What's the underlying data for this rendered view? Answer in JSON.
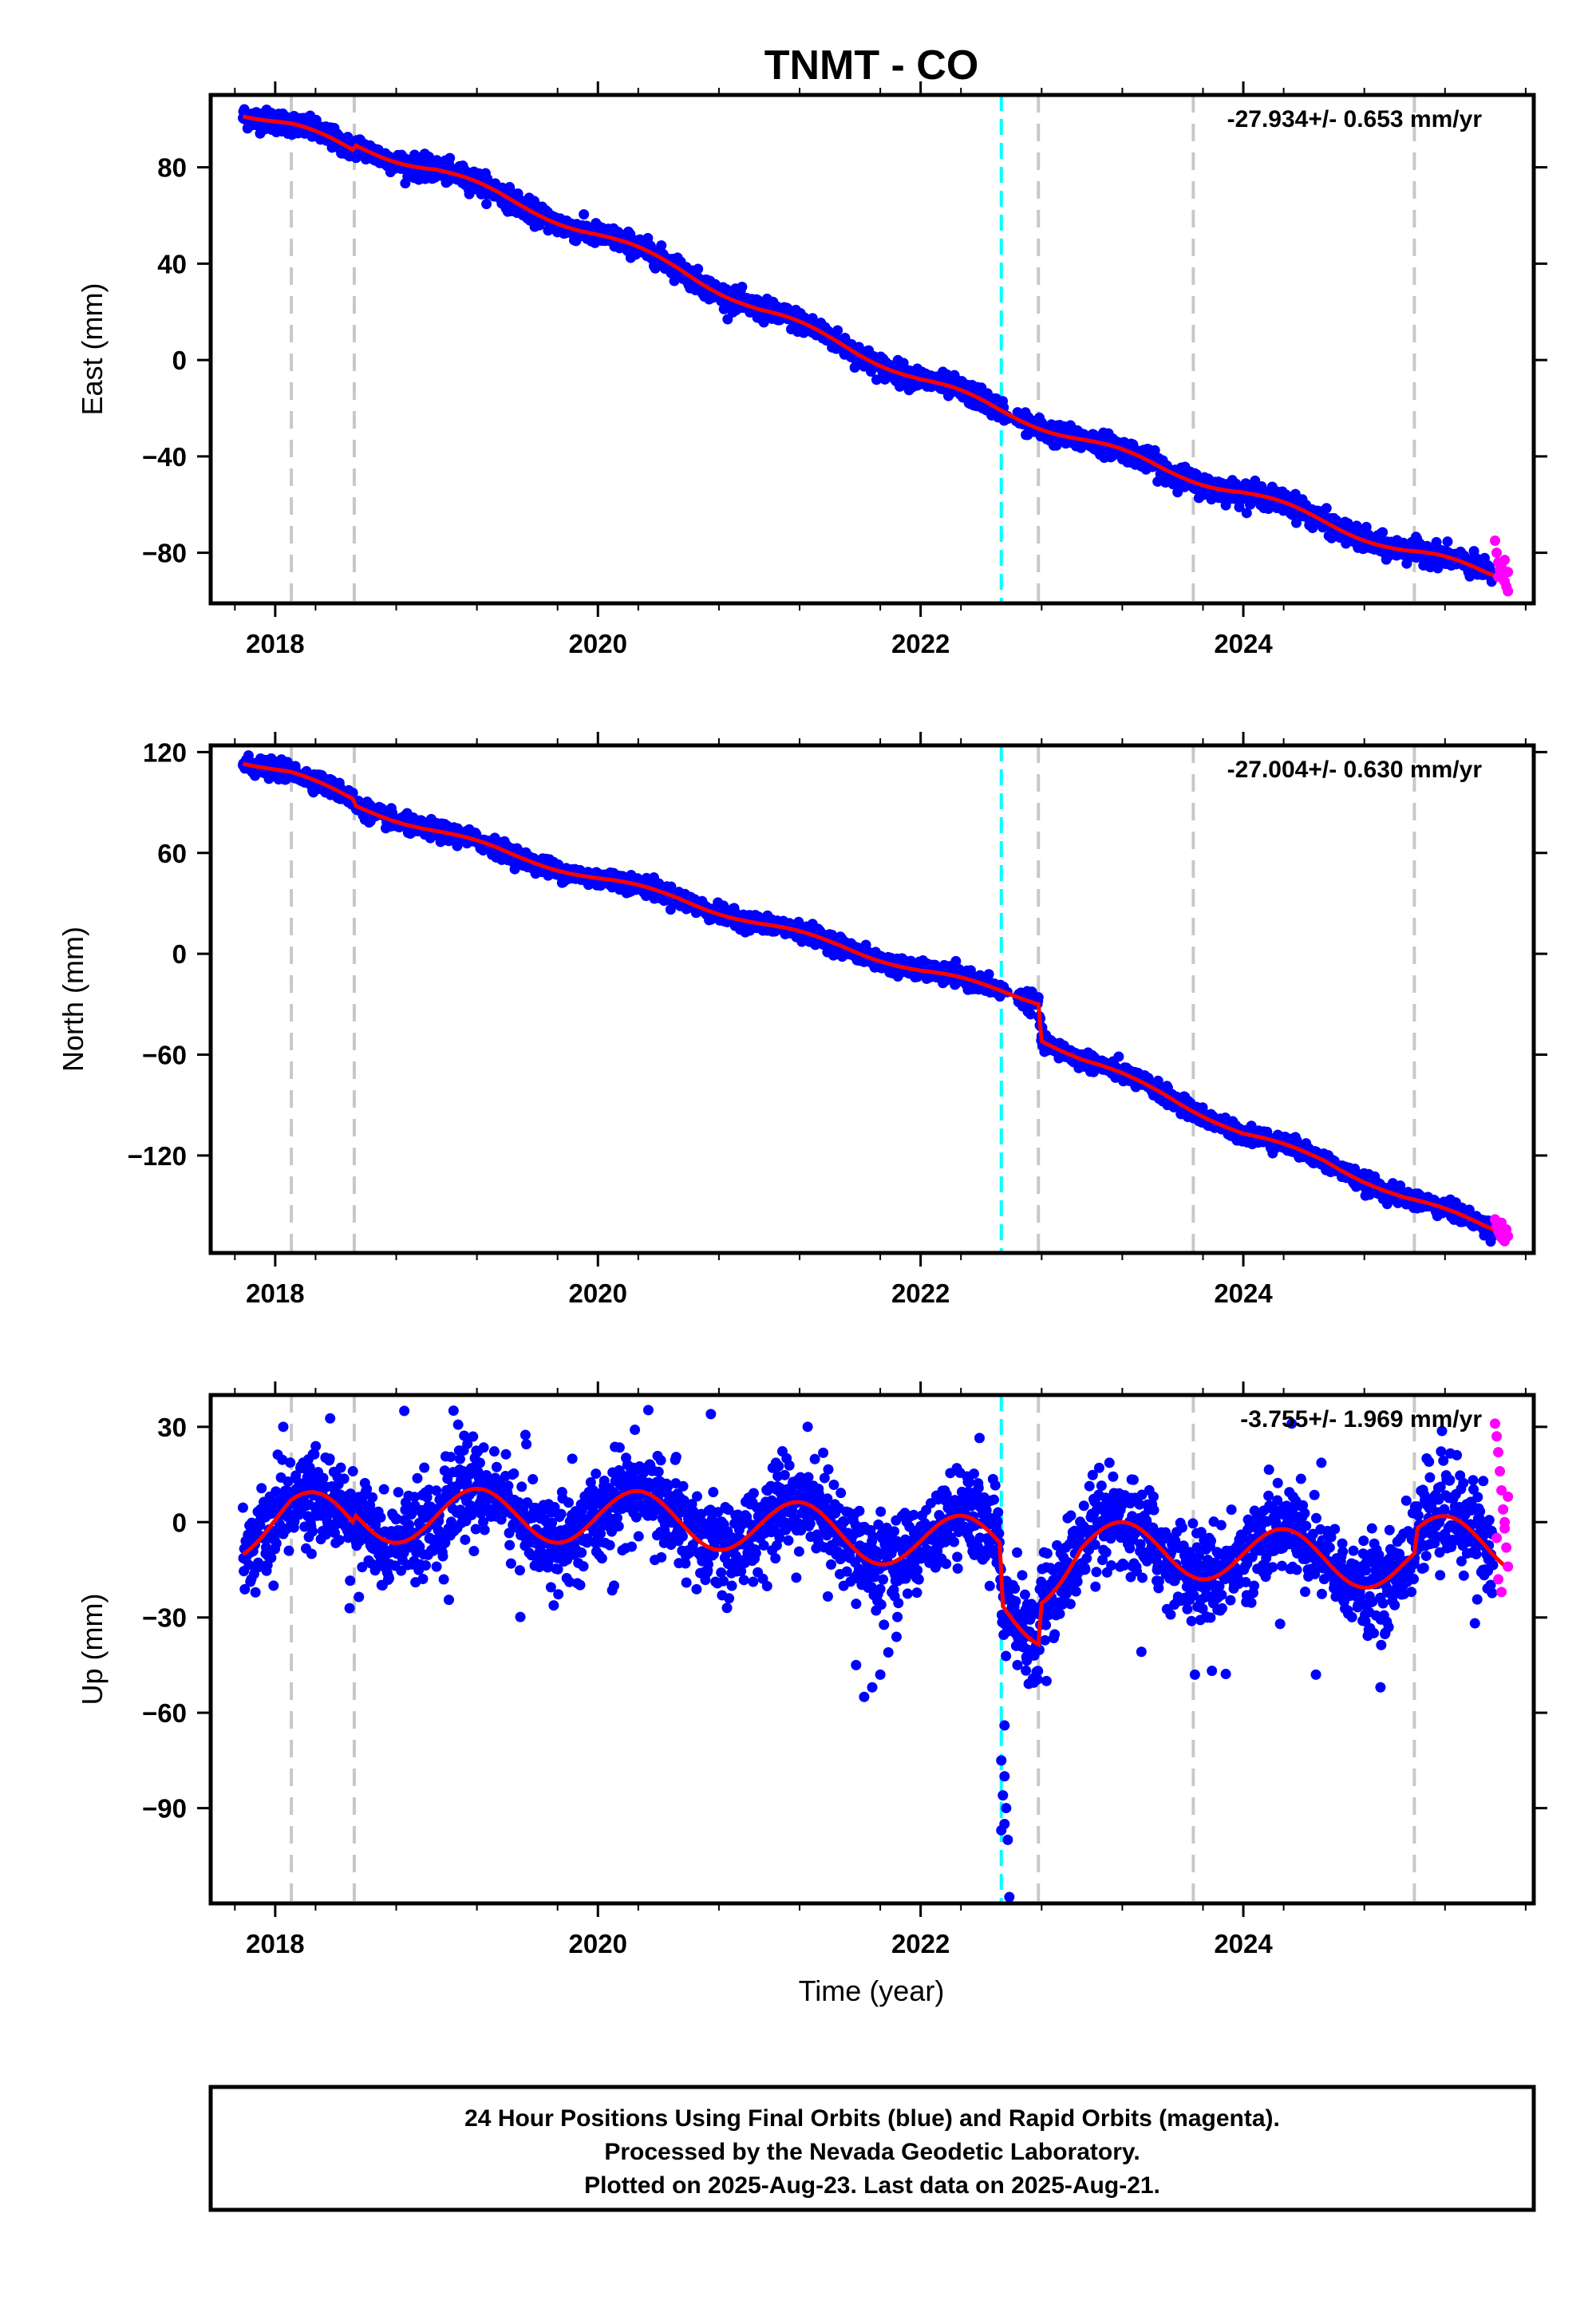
{
  "chart_data": {
    "type": "scatter",
    "title": "TNMT - CO",
    "xlabel": "Time (year)",
    "colors": {
      "final_orbits": "#0000ff",
      "rapid_orbits": "#ff00ff",
      "model_fit": "#ff0000",
      "event_cyan": "#00ffff",
      "event_gray": "#c8c8c8"
    },
    "xlim": [
      2017.6,
      2025.8
    ],
    "x_ticks": [
      2018,
      2020,
      2022,
      2024
    ],
    "x_tick_labels": [
      "2018",
      "2020",
      "2022",
      "2024"
    ],
    "cyan_lines": [
      2022.5
    ],
    "gray_lines": [
      2018.1,
      2018.49,
      2022.73,
      2023.69,
      2025.06
    ],
    "panels": [
      {
        "name": "east",
        "ylabel": "East (mm)",
        "ylim": [
          -101,
          110
        ],
        "y_ticks": [
          80,
          40,
          0,
          -40,
          -80
        ],
        "y_tick_labels": [
          "80",
          "40",
          "0",
          "−40",
          "−80"
        ],
        "rate_label": "-27.934+/- 0.653 mm/yr",
        "final_end_year": 2025.55,
        "rapid_start_year": 2025.55,
        "rapid_end_year": 2025.64,
        "trend": [
          [
            2017.8,
            103
          ],
          [
            2018.1,
            97
          ],
          [
            2018.48,
            87
          ],
          [
            2018.5,
            89
          ],
          [
            2019.0,
            79
          ],
          [
            2019.5,
            65
          ],
          [
            2020.0,
            52
          ],
          [
            2020.5,
            38
          ],
          [
            2021.0,
            21
          ],
          [
            2021.5,
            7
          ],
          [
            2022.0,
            -8
          ],
          [
            2022.5,
            -21
          ],
          [
            2023.0,
            -33
          ],
          [
            2023.5,
            -45
          ],
          [
            2024.0,
            -55
          ],
          [
            2024.5,
            -67
          ],
          [
            2025.0,
            -79
          ],
          [
            2025.5,
            -88
          ],
          [
            2025.64,
            -90
          ]
        ],
        "seasonal_amplitude": 2.0,
        "noise": 2.2,
        "outliers": [],
        "rapid_points": [
          [
            2025.56,
            -75
          ],
          [
            2025.57,
            -80
          ],
          [
            2025.58,
            -84
          ],
          [
            2025.59,
            -87
          ],
          [
            2025.6,
            -89
          ],
          [
            2025.61,
            -91
          ],
          [
            2025.62,
            -92
          ],
          [
            2025.63,
            -94
          ],
          [
            2025.64,
            -96
          ],
          [
            2025.58,
            -90
          ],
          [
            2025.6,
            -86
          ],
          [
            2025.62,
            -83
          ],
          [
            2025.64,
            -88
          ]
        ]
      },
      {
        "name": "north",
        "ylabel": "North (mm)",
        "ylim": [
          -178,
          124
        ],
        "y_ticks": [
          120,
          60,
          0,
          -60,
          -120
        ],
        "y_tick_labels": [
          "120",
          "60",
          "0",
          "−60",
          "−120"
        ],
        "rate_label": "-27.004+/- 0.630 mm/yr",
        "final_end_year": 2025.55,
        "rapid_start_year": 2025.55,
        "rapid_end_year": 2025.64,
        "trend": [
          [
            2017.8,
            115
          ],
          [
            2018.1,
            107
          ],
          [
            2018.48,
            92
          ],
          [
            2018.5,
            88
          ],
          [
            2019.0,
            73
          ],
          [
            2019.5,
            58
          ],
          [
            2020.0,
            45
          ],
          [
            2020.5,
            33
          ],
          [
            2021.0,
            18
          ],
          [
            2021.5,
            5
          ],
          [
            2022.0,
            -10
          ],
          [
            2022.5,
            -22
          ],
          [
            2022.73,
            -28
          ],
          [
            2022.75,
            -50
          ],
          [
            2023.0,
            -63
          ],
          [
            2023.5,
            -83
          ],
          [
            2024.0,
            -107
          ],
          [
            2024.5,
            -123
          ],
          [
            2025.0,
            -145
          ],
          [
            2025.5,
            -162
          ],
          [
            2025.64,
            -166
          ]
        ],
        "seasonal_amplitude": 2.0,
        "noise": 2.5,
        "outliers": [],
        "rapid_points": [
          [
            2025.56,
            -158
          ],
          [
            2025.57,
            -162
          ],
          [
            2025.58,
            -165
          ],
          [
            2025.59,
            -167
          ],
          [
            2025.6,
            -169
          ],
          [
            2025.61,
            -170
          ],
          [
            2025.62,
            -171
          ],
          [
            2025.63,
            -164
          ],
          [
            2025.64,
            -168
          ],
          [
            2025.6,
            -160
          ]
        ]
      },
      {
        "name": "up",
        "ylabel": "Up (mm)",
        "ylim": [
          -120,
          40
        ],
        "y_ticks": [
          30,
          0,
          -30,
          -60,
          -90
        ],
        "y_tick_labels": [
          "30",
          "0",
          "−30",
          "−60",
          "−90"
        ],
        "rate_label": "-3.755+/- 1.969 mm/yr",
        "final_end_year": 2025.55,
        "rapid_start_year": 2025.55,
        "rapid_end_year": 2025.64,
        "trend": [
          [
            2017.8,
            -2
          ],
          [
            2018.1,
            2
          ],
          [
            2018.48,
            -1
          ],
          [
            2018.5,
            2
          ],
          [
            2020.0,
            2
          ],
          [
            2021.0,
            -1
          ],
          [
            2022.0,
            -6
          ],
          [
            2022.49,
            -7
          ],
          [
            2022.51,
            -26
          ],
          [
            2022.73,
            -30
          ],
          [
            2022.75,
            -17
          ],
          [
            2023.0,
            -8
          ],
          [
            2024.0,
            -10
          ],
          [
            2025.06,
            -13
          ],
          [
            2025.08,
            -6
          ],
          [
            2025.64,
            -8
          ]
        ],
        "seasonal_amplitude": 8.5,
        "noise": 7.0,
        "outliers": [
          [
            2021.65,
            -55
          ],
          [
            2021.7,
            -52
          ],
          [
            2021.75,
            -48
          ],
          [
            2021.6,
            -45
          ],
          [
            2021.8,
            -41
          ],
          [
            2022.5,
            -75
          ],
          [
            2022.52,
            -80
          ],
          [
            2022.51,
            -86
          ],
          [
            2022.53,
            -90
          ],
          [
            2022.52,
            -95
          ],
          [
            2022.54,
            -100
          ],
          [
            2022.5,
            -97
          ],
          [
            2022.55,
            -118
          ],
          [
            2022.52,
            -64
          ],
          [
            2022.6,
            -45
          ],
          [
            2022.78,
            -50
          ],
          [
            2023.7,
            -48
          ],
          [
            2024.45,
            -48
          ],
          [
            2024.85,
            -52
          ],
          [
            2018.05,
            30
          ],
          [
            2018.8,
            35
          ],
          [
            2020.7,
            34
          ],
          [
            2021.3,
            30
          ],
          [
            2024.3,
            31
          ],
          [
            2019.0,
            -14
          ],
          [
            2020.1,
            -20
          ],
          [
            2020.8,
            -27
          ]
        ],
        "rapid_points": [
          [
            2025.56,
            31
          ],
          [
            2025.57,
            27
          ],
          [
            2025.58,
            22
          ],
          [
            2025.59,
            16
          ],
          [
            2025.6,
            10
          ],
          [
            2025.61,
            4
          ],
          [
            2025.62,
            -2
          ],
          [
            2025.63,
            -8
          ],
          [
            2025.64,
            -14
          ],
          [
            2025.58,
            -18
          ],
          [
            2025.6,
            -22
          ],
          [
            2025.62,
            0
          ],
          [
            2025.64,
            8
          ],
          [
            2025.57,
            -5
          ]
        ]
      }
    ],
    "footer_lines": [
      "24 Hour Positions Using Final Orbits (blue) and Rapid Orbits (magenta).",
      "Processed by the Nevada Geodetic Laboratory.",
      "Plotted on 2025-Aug-23. Last data on 2025-Aug-21."
    ]
  }
}
